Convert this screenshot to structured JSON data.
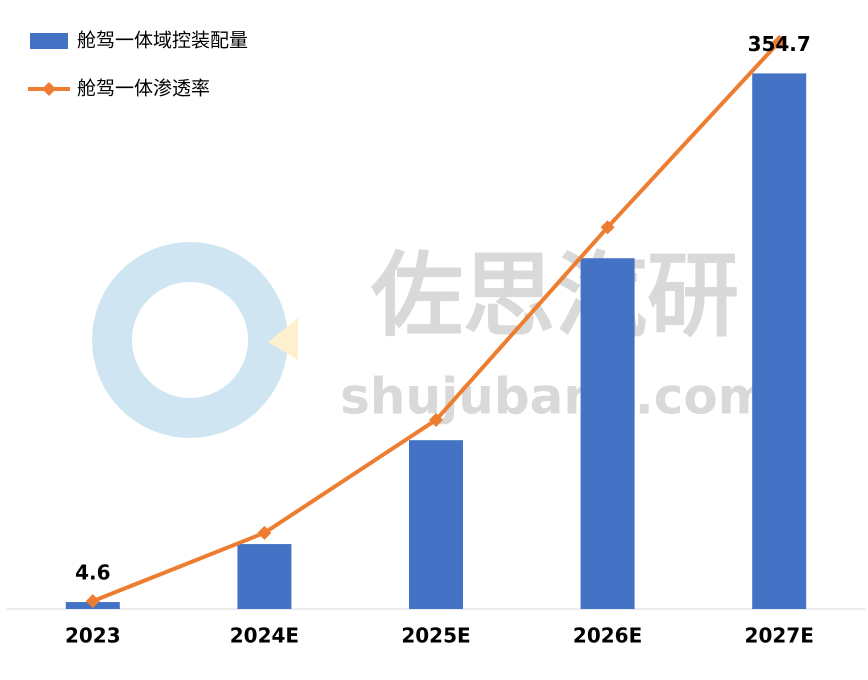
{
  "chart_data": {
    "type": "bar_line",
    "categories": [
      "2023",
      "2024E",
      "2025E",
      "2026E",
      "2027E"
    ],
    "series": [
      {
        "name": "舱驾一体域控装配量",
        "type": "bar",
        "color": "#4472c4",
        "values": [
          4.6,
          43.0,
          111.8,
          232.3,
          354.7
        ],
        "value_labels": [
          "4.6",
          null,
          null,
          null,
          "354.7"
        ]
      },
      {
        "name": "舱驾一体渗透率",
        "type": "line",
        "axis": "y2",
        "color": "#ed7d31",
        "values": [
          1.3,
          12.6,
          31.3,
          63.2,
          93.9
        ]
      }
    ],
    "ylim": [
      0,
      400
    ],
    "y2lim": [
      0,
      100
    ],
    "grid": false,
    "legend": "top-left"
  },
  "watermark": {
    "text": "佐思汽研",
    "url": "shujubang.com"
  }
}
